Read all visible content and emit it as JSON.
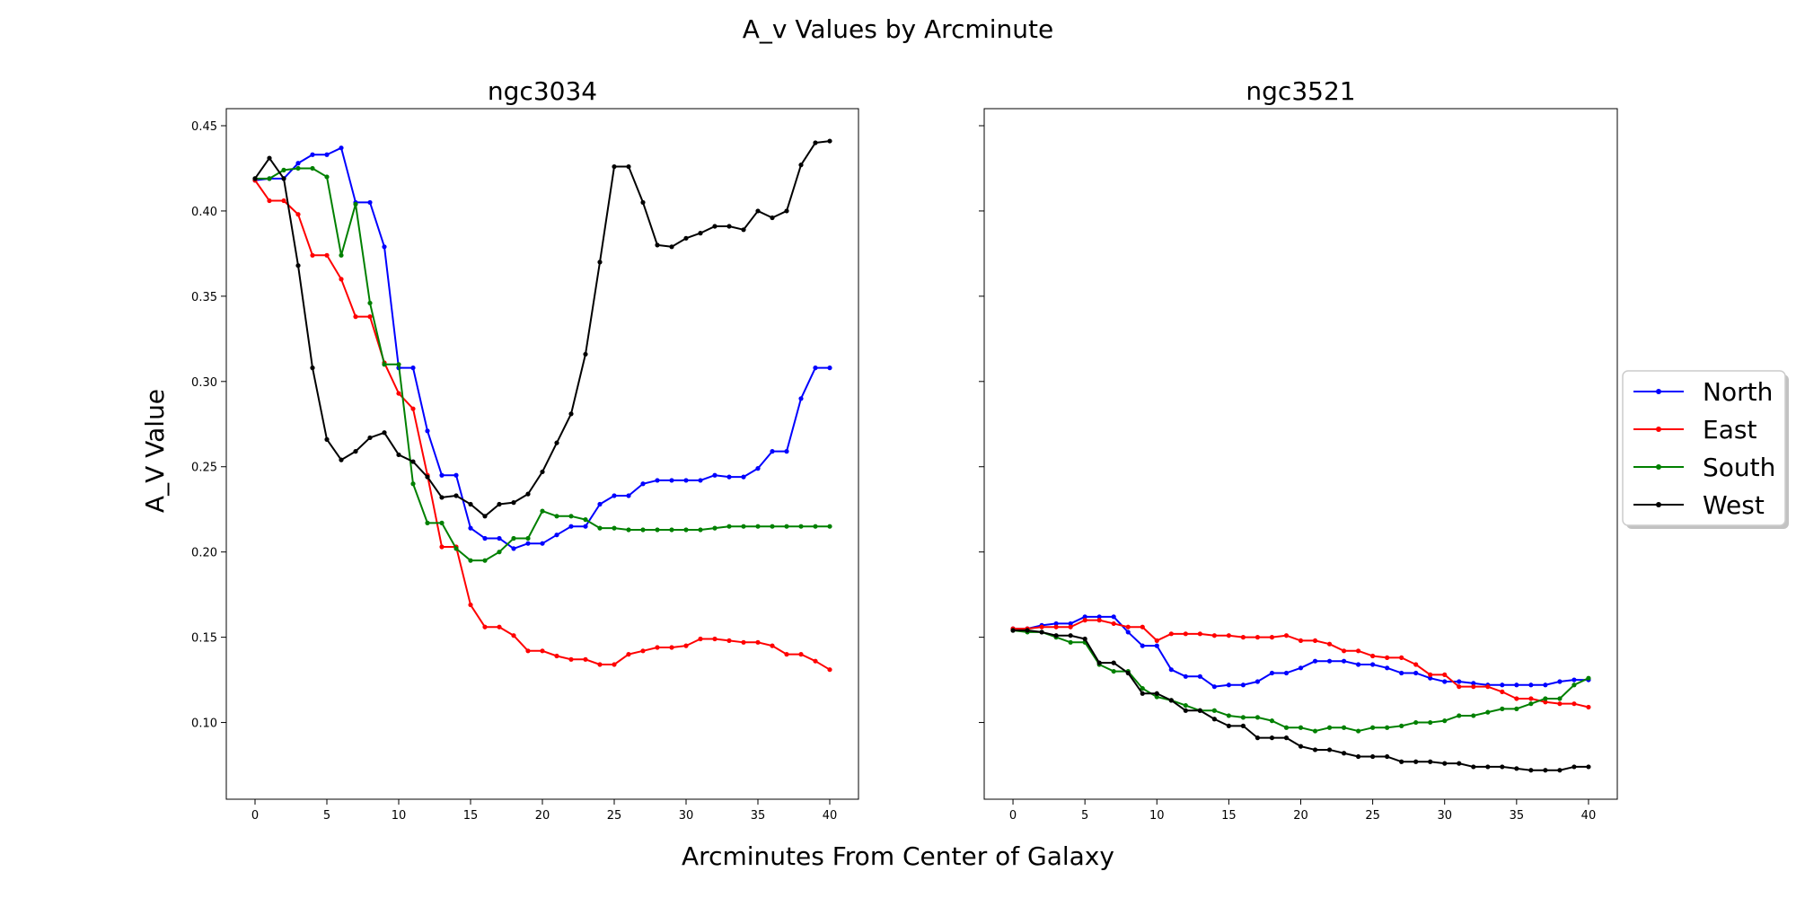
{
  "figure": {
    "suptitle": "A_v Values by Arcminute",
    "xlabel": "Arcminutes From Center of Galaxy",
    "ylabel": "A_V Value"
  },
  "legend": {
    "placement": "right",
    "entries": [
      {
        "name": "North",
        "color": "#0000ff"
      },
      {
        "name": "East",
        "color": "#ff0000"
      },
      {
        "name": "South",
        "color": "#008000"
      },
      {
        "name": "West",
        "color": "#000000"
      }
    ]
  },
  "chart_data": [
    {
      "type": "line",
      "title": "ngc3034",
      "xlim": [
        -2,
        42
      ],
      "ylim": [
        0.055,
        0.46
      ],
      "xticks": [
        0,
        5,
        10,
        15,
        20,
        25,
        30,
        35,
        40
      ],
      "xtick_labels": [
        "0",
        "5",
        "10",
        "15",
        "20",
        "25",
        "30",
        "35",
        "40"
      ],
      "yticks": [
        0.1,
        0.15,
        0.2,
        0.25,
        0.3,
        0.35,
        0.4,
        0.45
      ],
      "ytick_labels": [
        "0.10",
        "0.15",
        "0.20",
        "0.25",
        "0.30",
        "0.35",
        "0.40",
        "0.45"
      ],
      "x": [
        0,
        1,
        2,
        3,
        4,
        5,
        6,
        7,
        8,
        9,
        10,
        11,
        12,
        13,
        14,
        15,
        16,
        17,
        18,
        19,
        20,
        21,
        22,
        23,
        24,
        25,
        26,
        27,
        28,
        29,
        30,
        31,
        32,
        33,
        34,
        35,
        36,
        37,
        38,
        39,
        40
      ],
      "series": [
        {
          "name": "North",
          "color": "#0000ff",
          "values": [
            0.418,
            0.419,
            0.419,
            0.428,
            0.433,
            0.433,
            0.437,
            0.405,
            0.405,
            0.379,
            0.308,
            0.308,
            0.271,
            0.245,
            0.245,
            0.214,
            0.208,
            0.208,
            0.202,
            0.205,
            0.205,
            0.21,
            0.215,
            0.215,
            0.228,
            0.233,
            0.233,
            0.24,
            0.242,
            0.242,
            0.242,
            0.242,
            0.245,
            0.244,
            0.244,
            0.249,
            0.259,
            0.259,
            0.29,
            0.308,
            0.308
          ]
        },
        {
          "name": "East",
          "color": "#ff0000",
          "values": [
            0.418,
            0.406,
            0.406,
            0.398,
            0.374,
            0.374,
            0.36,
            0.338,
            0.338,
            0.311,
            0.293,
            0.284,
            0.245,
            0.203,
            0.203,
            0.169,
            0.156,
            0.156,
            0.151,
            0.142,
            0.142,
            0.139,
            0.137,
            0.137,
            0.134,
            0.134,
            0.14,
            0.142,
            0.144,
            0.144,
            0.145,
            0.149,
            0.149,
            0.148,
            0.147,
            0.147,
            0.145,
            0.14,
            0.14,
            0.136,
            0.131
          ]
        },
        {
          "name": "South",
          "color": "#008000",
          "values": [
            0.419,
            0.419,
            0.424,
            0.425,
            0.425,
            0.42,
            0.374,
            0.404,
            0.346,
            0.31,
            0.31,
            0.24,
            0.217,
            0.217,
            0.202,
            0.195,
            0.195,
            0.2,
            0.208,
            0.208,
            0.224,
            0.221,
            0.221,
            0.219,
            0.214,
            0.214,
            0.213,
            0.213,
            0.213,
            0.213,
            0.213,
            0.213,
            0.214,
            0.215,
            0.215,
            0.215,
            0.215,
            0.215,
            0.215,
            0.215,
            0.215
          ]
        },
        {
          "name": "West",
          "color": "#000000",
          "values": [
            0.419,
            0.431,
            0.419,
            0.368,
            0.308,
            0.266,
            0.254,
            0.259,
            0.267,
            0.27,
            0.257,
            0.253,
            0.244,
            0.232,
            0.233,
            0.228,
            0.221,
            0.228,
            0.229,
            0.234,
            0.247,
            0.264,
            0.281,
            0.316,
            0.37,
            0.426,
            0.426,
            0.405,
            0.38,
            0.379,
            0.384,
            0.387,
            0.391,
            0.391,
            0.389,
            0.4,
            0.396,
            0.4,
            0.427,
            0.44,
            0.441
          ]
        }
      ]
    },
    {
      "type": "line",
      "title": "ngc3521",
      "xlim": [
        -2,
        42
      ],
      "ylim": [
        0.055,
        0.46
      ],
      "xticks": [
        0,
        5,
        10,
        15,
        20,
        25,
        30,
        35,
        40
      ],
      "xtick_labels": [
        "0",
        "5",
        "10",
        "15",
        "20",
        "25",
        "30",
        "35",
        "40"
      ],
      "yticks": [
        0.1,
        0.15,
        0.2,
        0.25,
        0.3,
        0.35,
        0.4,
        0.45
      ],
      "x": [
        0,
        1,
        2,
        3,
        4,
        5,
        6,
        7,
        8,
        9,
        10,
        11,
        12,
        13,
        14,
        15,
        16,
        17,
        18,
        19,
        20,
        21,
        22,
        23,
        24,
        25,
        26,
        27,
        28,
        29,
        30,
        31,
        32,
        33,
        34,
        35,
        36,
        37,
        38,
        39,
        40
      ],
      "series": [
        {
          "name": "North",
          "color": "#0000ff",
          "values": [
            0.155,
            0.155,
            0.157,
            0.158,
            0.158,
            0.162,
            0.162,
            0.162,
            0.153,
            0.145,
            0.145,
            0.131,
            0.127,
            0.127,
            0.121,
            0.122,
            0.122,
            0.124,
            0.129,
            0.129,
            0.132,
            0.136,
            0.136,
            0.136,
            0.134,
            0.134,
            0.132,
            0.129,
            0.129,
            0.126,
            0.124,
            0.124,
            0.123,
            0.122,
            0.122,
            0.122,
            0.122,
            0.122,
            0.124,
            0.125,
            0.125
          ]
        },
        {
          "name": "East",
          "color": "#ff0000",
          "values": [
            0.155,
            0.155,
            0.156,
            0.156,
            0.156,
            0.16,
            0.16,
            0.158,
            0.156,
            0.156,
            0.148,
            0.152,
            0.152,
            0.152,
            0.151,
            0.151,
            0.15,
            0.15,
            0.15,
            0.151,
            0.148,
            0.148,
            0.146,
            0.142,
            0.142,
            0.139,
            0.138,
            0.138,
            0.134,
            0.128,
            0.128,
            0.121,
            0.121,
            0.121,
            0.118,
            0.114,
            0.114,
            0.112,
            0.111,
            0.111,
            0.109
          ]
        },
        {
          "name": "South",
          "color": "#008000",
          "values": [
            0.154,
            0.153,
            0.153,
            0.15,
            0.147,
            0.147,
            0.134,
            0.13,
            0.13,
            0.12,
            0.115,
            0.113,
            0.11,
            0.107,
            0.107,
            0.104,
            0.103,
            0.103,
            0.101,
            0.097,
            0.097,
            0.095,
            0.097,
            0.097,
            0.095,
            0.097,
            0.097,
            0.098,
            0.1,
            0.1,
            0.101,
            0.104,
            0.104,
            0.106,
            0.108,
            0.108,
            0.111,
            0.114,
            0.114,
            0.122,
            0.126
          ]
        },
        {
          "name": "West",
          "color": "#000000",
          "values": [
            0.154,
            0.154,
            0.153,
            0.151,
            0.151,
            0.149,
            0.135,
            0.135,
            0.129,
            0.117,
            0.117,
            0.113,
            0.107,
            0.107,
            0.102,
            0.098,
            0.098,
            0.091,
            0.091,
            0.091,
            0.086,
            0.084,
            0.084,
            0.082,
            0.08,
            0.08,
            0.08,
            0.077,
            0.077,
            0.077,
            0.076,
            0.076,
            0.074,
            0.074,
            0.074,
            0.073,
            0.072,
            0.072,
            0.072,
            0.074,
            0.074
          ]
        }
      ]
    }
  ]
}
